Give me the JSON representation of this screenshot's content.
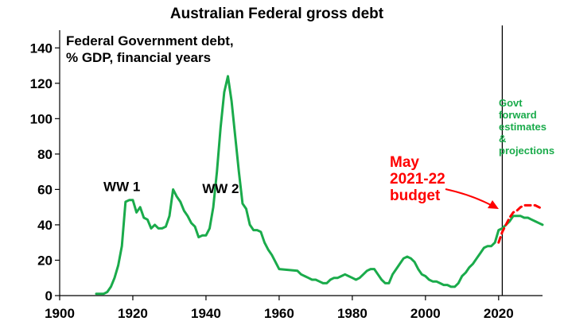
{
  "chart_data": {
    "type": "line",
    "title": "Australian Federal gross debt",
    "subtitle_lines": [
      "Federal Government debt,",
      "% GDP, financial years"
    ],
    "xlim": [
      1900,
      2035
    ],
    "ylim": [
      0,
      150
    ],
    "xticks": [
      1900,
      1920,
      1940,
      1960,
      1980,
      2000,
      2020
    ],
    "yticks": [
      0,
      20,
      40,
      60,
      80,
      100,
      120,
      140
    ],
    "grid": false,
    "vertical_line_x": 2021,
    "colors": {
      "actual": "#1aab4b",
      "budget": "#ff0000",
      "axis": "#000000"
    },
    "series": [
      {
        "key": "actual",
        "style": "solid",
        "x": [
          1910,
          1912,
          1913,
          1914,
          1915,
          1916,
          1917,
          1918,
          1919,
          1920,
          1921,
          1922,
          1923,
          1924,
          1925,
          1926,
          1927,
          1928,
          1929,
          1930,
          1931,
          1932,
          1933,
          1934,
          1935,
          1936,
          1937,
          1938,
          1939,
          1940,
          1941,
          1942,
          1943,
          1944,
          1945,
          1946,
          1947,
          1948,
          1949,
          1950,
          1951,
          1952,
          1953,
          1954,
          1955,
          1956,
          1957,
          1958,
          1960,
          1965,
          1966,
          1967,
          1968,
          1969,
          1970,
          1971,
          1972,
          1973,
          1974,
          1975,
          1976,
          1977,
          1978,
          1979,
          1980,
          1981,
          1982,
          1983,
          1984,
          1985,
          1986,
          1987,
          1988,
          1989,
          1990,
          1991,
          1992,
          1993,
          1994,
          1995,
          1996,
          1997,
          1998,
          1999,
          2000,
          2001,
          2002,
          2003,
          2004,
          2005,
          2006,
          2007,
          2008,
          2009,
          2010,
          2011,
          2012,
          2013,
          2014,
          2015,
          2016,
          2017,
          2018,
          2019,
          2020,
          2021,
          2022,
          2023,
          2024,
          2025,
          2026,
          2027,
          2028,
          2029,
          2030,
          2031,
          2032
        ],
        "values": [
          1,
          1,
          2,
          5,
          10,
          17,
          28,
          53,
          54,
          54,
          47,
          50,
          44,
          43,
          38,
          40,
          38,
          38,
          39,
          45,
          60,
          56,
          53,
          48,
          45,
          41,
          39,
          33,
          34,
          34,
          38,
          50,
          70,
          95,
          115,
          124,
          110,
          90,
          70,
          52,
          49,
          40,
          37,
          37,
          36,
          30,
          26,
          23,
          15,
          14,
          12,
          11,
          10,
          9,
          9,
          8,
          7,
          7,
          9,
          10,
          10,
          11,
          12,
          11,
          10,
          9,
          10,
          12,
          14,
          15,
          15,
          12,
          9,
          7,
          7,
          12,
          15,
          18,
          21,
          22,
          21,
          19,
          15,
          12,
          11,
          9,
          8,
          8,
          7,
          6,
          6,
          5,
          5,
          7,
          11,
          13,
          16,
          18,
          21,
          24,
          27,
          28,
          28,
          30,
          37,
          38,
          40,
          42,
          45,
          45,
          45,
          44,
          44,
          43,
          42,
          41,
          40
        ]
      },
      {
        "key": "budget",
        "style": "dashed",
        "x": [
          2020,
          2021,
          2022,
          2023,
          2024,
          2025,
          2026,
          2027,
          2028,
          2029,
          2030,
          2031,
          2032
        ],
        "values": [
          30,
          36,
          40,
          44,
          47,
          48,
          50,
          51,
          51,
          51,
          51,
          50,
          49
        ]
      }
    ],
    "annotations": [
      {
        "text": "WW 1",
        "x": 1917,
        "y": 59
      },
      {
        "text": "WW 2",
        "x": 1944,
        "y": 58
      }
    ],
    "budget_label": {
      "lines": [
        "May",
        "2021-22",
        "budget"
      ]
    },
    "forward_label": {
      "lines": [
        "Govt",
        "forward",
        "estimates",
        "&",
        "projections"
      ]
    }
  }
}
